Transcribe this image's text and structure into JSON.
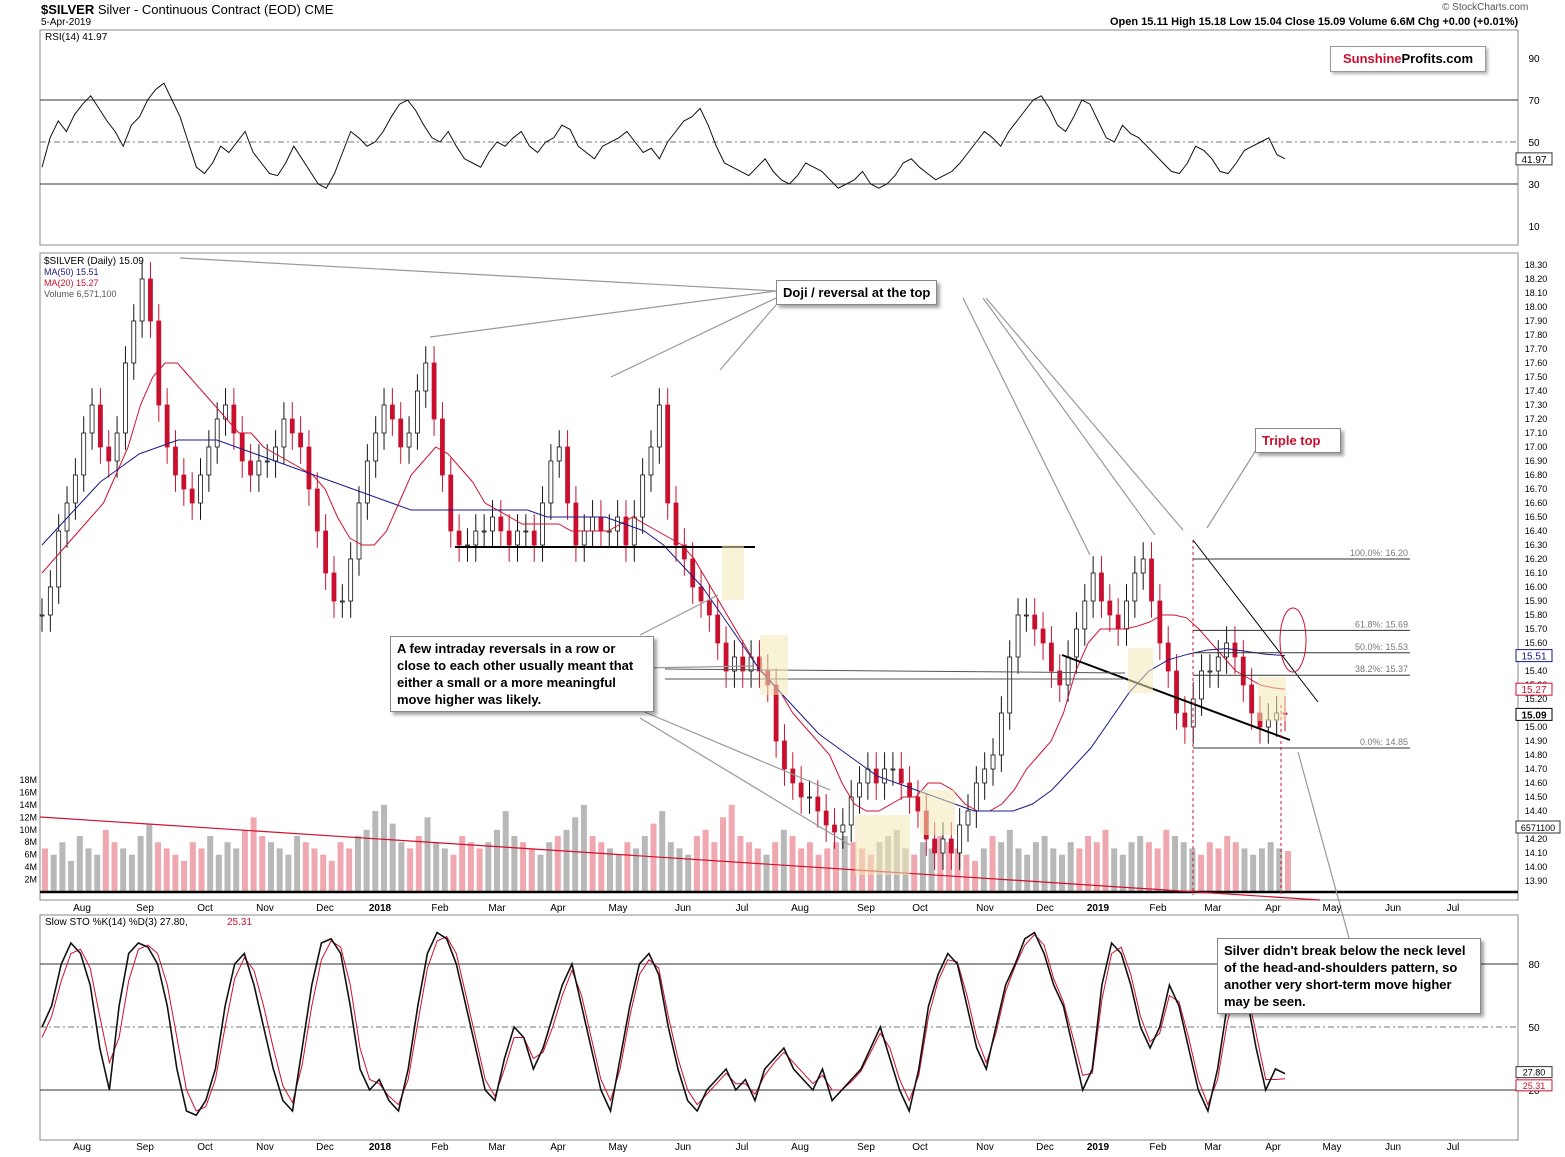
{
  "header": {
    "symbol": "$SILVER",
    "description": "Silver - Continuous Contract (EOD)",
    "exchange": "CME",
    "date": "5-Apr-2019",
    "ohlc": "Open 15.11  High 15.18  Low 15.04  Close 15.09  Volume 6.6M  Chg +0.00 (+0.01%)",
    "credit": "© StockCharts.com"
  },
  "logo": {
    "part1": "Sunshine",
    "part2": "Profits.com"
  },
  "callouts": {
    "doji": "Doji / reversal at the top",
    "triple_top": "Triple top",
    "reversals": "A few intraday reversals in a row or close to each other usually meant that either a small or a more meaningful move higher was likely.",
    "neck": "Silver didn't break below the neck level of the head-and-shoulders pattern, so another very short-term move higher may be seen."
  },
  "chart_data": [
    {
      "type": "line",
      "title": "RSI(14) 41.97",
      "ylim": [
        0,
        100
      ],
      "yticks": [
        10,
        30,
        50,
        70,
        90
      ],
      "reference_lines": [
        30,
        50,
        70
      ],
      "last_value": "41.97",
      "series": [
        {
          "name": "RSI(14)",
          "values": [
            38,
            52,
            60,
            55,
            63,
            68,
            72,
            66,
            60,
            55,
            48,
            58,
            62,
            70,
            75,
            78,
            70,
            62,
            50,
            38,
            35,
            40,
            48,
            45,
            50,
            55,
            45,
            40,
            35,
            34,
            40,
            48,
            42,
            36,
            30,
            28,
            35,
            45,
            55,
            52,
            48,
            50,
            55,
            62,
            68,
            70,
            65,
            58,
            52,
            50,
            55,
            48,
            42,
            40,
            38,
            45,
            50,
            48,
            52,
            55,
            48,
            45,
            50,
            52,
            58,
            56,
            48,
            45,
            42,
            48,
            50,
            52,
            55,
            50,
            45,
            47,
            42,
            50,
            55,
            60,
            62,
            66,
            58,
            48,
            40,
            38,
            36,
            34,
            38,
            42,
            36,
            32,
            30,
            34,
            40,
            38,
            36,
            32,
            28,
            30,
            32,
            36,
            30,
            28,
            30,
            34,
            40,
            42,
            38,
            35,
            32,
            34,
            36,
            40,
            45,
            50,
            55,
            52,
            48,
            55,
            60,
            65,
            70,
            72,
            66,
            58,
            55,
            62,
            70,
            68,
            60,
            52,
            50,
            58,
            54,
            52,
            48,
            44,
            40,
            36,
            35,
            40,
            48,
            46,
            42,
            36,
            35,
            40,
            46,
            48,
            50,
            52,
            44,
            42
          ]
        }
      ]
    },
    {
      "type": "line",
      "title": "$SILVER (Daily) 15.09",
      "subtitle": "Silver - Continuous Contract (EOD)",
      "ylim": [
        13.85,
        18.35
      ],
      "yticks": [
        13.9,
        14.0,
        14.1,
        14.2,
        14.3,
        14.4,
        14.5,
        14.6,
        14.7,
        14.8,
        14.9,
        15.0,
        15.1,
        15.2,
        15.3,
        15.4,
        15.5,
        15.6,
        15.7,
        15.8,
        15.9,
        16.0,
        16.1,
        16.2,
        16.3,
        16.4,
        16.5,
        16.6,
        16.7,
        16.8,
        16.9,
        17.0,
        17.1,
        17.2,
        17.3,
        17.4,
        17.5,
        17.6,
        17.7,
        17.8,
        17.9,
        18.0,
        18.1,
        18.2,
        18.3
      ],
      "x_labels": [
        "Aug",
        "Sep",
        "Oct",
        "Nov",
        "Dec",
        "2018",
        "Feb",
        "Mar",
        "Apr",
        "May",
        "Jun",
        "Jul",
        "Aug",
        "Sep",
        "Oct",
        "Nov",
        "Dec",
        "2019",
        "Feb",
        "Mar",
        "Apr",
        "May",
        "Jun",
        "Jul"
      ],
      "legend": [
        {
          "label": "$SILVER (Daily) 15.09",
          "color": "#000000"
        },
        {
          "label": "MA(50) 15.51",
          "color": "#1a1a8c"
        },
        {
          "label": "MA(20) 15.27",
          "color": "#d0102e"
        },
        {
          "label": "Volume 6,571,100",
          "color": "#777777"
        }
      ],
      "last_values": {
        "close": "15.09",
        "ma50": "15.51",
        "ma20": "15.27",
        "volume": "6571100"
      },
      "fibonacci": [
        {
          "label": "100.0%: 16.20",
          "value": 16.2
        },
        {
          "label": "61.8%: 15.69",
          "value": 15.69
        },
        {
          "label": "50.0%: 15.53",
          "value": 15.53
        },
        {
          "label": "38.2%: 15.37",
          "value": 15.37
        },
        {
          "label": "0.0%: 14.85",
          "value": 14.85
        }
      ],
      "volume_ticks": [
        "2M",
        "4M",
        "6M",
        "8M",
        "10M",
        "12M",
        "14M",
        "16M",
        "18M"
      ],
      "series": [
        {
          "name": "$SILVER (Daily)",
          "values": [
            15.8,
            16.0,
            16.4,
            16.6,
            16.8,
            17.1,
            17.3,
            17.0,
            16.9,
            17.1,
            17.6,
            17.9,
            18.2,
            17.9,
            17.3,
            17.0,
            16.8,
            16.7,
            16.6,
            16.8,
            17.0,
            17.2,
            17.3,
            17.1,
            16.9,
            16.8,
            16.9,
            16.9,
            17.0,
            17.2,
            17.1,
            17.0,
            16.7,
            16.4,
            16.1,
            15.9,
            15.9,
            16.2,
            16.6,
            16.9,
            17.1,
            17.3,
            17.2,
            17.0,
            17.1,
            17.4,
            17.6,
            17.2,
            16.8,
            16.4,
            16.3,
            16.3,
            16.4,
            16.4,
            16.5,
            16.4,
            16.3,
            16.4,
            16.4,
            16.3,
            16.6,
            16.9,
            17.0,
            16.6,
            16.3,
            16.4,
            16.5,
            16.4,
            16.4,
            16.5,
            16.3,
            16.5,
            16.8,
            17.0,
            17.3,
            16.6,
            16.3,
            16.2,
            16.0,
            15.9,
            15.8,
            15.6,
            15.4,
            15.5,
            15.4,
            15.5,
            15.4,
            15.3,
            14.9,
            14.7,
            14.6,
            14.5,
            14.5,
            14.4,
            14.3,
            14.25,
            14.3,
            14.5,
            14.6,
            14.7,
            14.6,
            14.7,
            14.7,
            14.6,
            14.5,
            14.4,
            14.2,
            14.1,
            14.2,
            14.1,
            14.3,
            14.4,
            14.6,
            14.7,
            14.8,
            15.1,
            15.5,
            15.8,
            15.8,
            15.7,
            15.6,
            15.4,
            15.3,
            15.5,
            15.7,
            15.9,
            16.1,
            15.9,
            15.8,
            15.7,
            15.9,
            16.1,
            16.2,
            15.9,
            15.6,
            15.4,
            15.1,
            15.0,
            15.2,
            15.4,
            15.4,
            15.5,
            15.6,
            15.5,
            15.3,
            15.1,
            15.0,
            15.05,
            15.1,
            15.09
          ]
        },
        {
          "name": "MA(20)",
          "values": [
            16.1,
            16.2,
            16.3,
            16.4,
            16.5,
            16.6,
            16.8,
            17.0,
            17.3,
            17.5,
            17.6,
            17.6,
            17.5,
            17.4,
            17.3,
            17.2,
            17.1,
            17.1,
            17.0,
            16.95,
            16.9,
            16.85,
            16.8,
            16.7,
            16.5,
            16.35,
            16.3,
            16.3,
            16.4,
            16.6,
            16.8,
            16.9,
            17.0,
            16.95,
            16.85,
            16.75,
            16.6,
            16.55,
            16.5,
            16.45,
            16.45,
            16.45,
            16.45,
            16.4,
            16.4,
            16.4,
            16.4,
            16.45,
            16.5,
            16.45,
            16.4,
            16.35,
            16.3,
            16.2,
            16.05,
            15.9,
            15.75,
            15.6,
            15.45,
            15.35,
            15.25,
            15.1,
            15.0,
            14.9,
            14.8,
            14.6,
            14.45,
            14.4,
            14.4,
            14.45,
            14.5,
            14.5,
            14.6,
            14.6,
            14.55,
            14.45,
            14.4,
            14.4,
            14.45,
            14.55,
            14.7,
            14.8,
            14.9,
            15.1,
            15.4,
            15.6,
            15.7,
            15.7,
            15.7,
            15.72,
            15.75,
            15.8,
            15.8,
            15.78,
            15.7,
            15.6,
            15.5,
            15.4,
            15.35,
            15.3,
            15.28,
            15.27
          ]
        },
        {
          "name": "MA(50)",
          "values": [
            16.3,
            16.45,
            16.6,
            16.75,
            16.85,
            16.95,
            17.0,
            17.05,
            17.05,
            17.05,
            17.0,
            16.95,
            16.9,
            16.85,
            16.8,
            16.75,
            16.7,
            16.65,
            16.6,
            16.55,
            16.55,
            16.55,
            16.55,
            16.55,
            16.55,
            16.55,
            16.5,
            16.5,
            16.5,
            16.5,
            16.45,
            16.4,
            16.3,
            16.15,
            16.0,
            15.8,
            15.6,
            15.4,
            15.25,
            15.1,
            14.95,
            14.85,
            14.75,
            14.65,
            14.6,
            14.55,
            14.5,
            14.45,
            14.4,
            14.4,
            14.4,
            14.45,
            14.55,
            14.7,
            14.85,
            15.05,
            15.25,
            15.4,
            15.48,
            15.52,
            15.55,
            15.56,
            15.54,
            15.52,
            15.51
          ]
        },
        {
          "name": "Volume",
          "values": [
            7,
            6,
            8,
            5,
            9,
            7,
            6,
            10,
            8,
            7,
            6,
            9,
            11,
            8,
            7,
            6,
            5,
            8,
            7,
            9,
            6,
            8,
            7,
            10,
            12,
            9,
            8,
            7,
            6,
            9,
            8,
            7,
            6,
            5,
            8,
            7,
            9,
            10,
            13,
            14,
            11,
            8,
            7,
            9,
            12,
            8,
            7,
            6,
            9,
            8,
            7,
            8,
            10,
            13,
            9,
            8,
            7,
            6,
            8,
            9,
            10,
            12,
            14,
            9,
            8,
            7,
            6,
            8,
            7,
            9,
            11,
            13,
            8,
            7,
            6,
            9,
            10,
            8,
            12,
            14,
            9,
            8,
            7,
            6,
            8,
            10,
            9,
            7,
            8,
            6,
            7,
            8,
            9,
            8,
            7,
            6,
            8,
            9,
            10,
            7,
            6,
            8,
            7,
            9,
            8,
            7,
            6,
            5,
            7,
            9,
            8,
            10,
            7,
            6,
            8,
            9,
            7,
            6,
            8,
            7,
            9,
            8,
            10,
            7,
            6,
            8,
            9,
            8,
            7,
            10,
            9,
            8,
            7,
            6,
            8,
            7,
            9,
            8,
            7,
            6,
            7,
            8,
            7,
            6.6
          ]
        }
      ]
    },
    {
      "type": "line",
      "title": "Slow STO %K(14) %D(3) 27.80, 25.31",
      "ylim": [
        0,
        100
      ],
      "yticks": [
        20,
        50,
        80
      ],
      "reference_lines": [
        20,
        50,
        80
      ],
      "last_values": {
        "k": "27.80",
        "d": "25.31"
      },
      "series": [
        {
          "name": "%K(14)",
          "values": [
            50,
            60,
            80,
            90,
            85,
            70,
            40,
            20,
            60,
            85,
            90,
            88,
            80,
            60,
            30,
            10,
            8,
            15,
            30,
            60,
            80,
            85,
            70,
            50,
            30,
            15,
            10,
            40,
            70,
            90,
            92,
            85,
            60,
            30,
            20,
            25,
            15,
            10,
            30,
            60,
            85,
            95,
            92,
            80,
            60,
            40,
            20,
            15,
            35,
            50,
            45,
            30,
            40,
            55,
            70,
            80,
            60,
            40,
            20,
            10,
            35,
            60,
            80,
            85,
            75,
            50,
            30,
            15,
            10,
            20,
            25,
            30,
            20,
            25,
            15,
            30,
            35,
            40,
            30,
            25,
            20,
            30,
            15,
            20,
            25,
            30,
            40,
            50,
            35,
            20,
            10,
            30,
            60,
            75,
            85,
            80,
            60,
            40,
            30,
            50,
            70,
            80,
            92,
            95,
            85,
            70,
            60,
            40,
            20,
            30,
            70,
            90,
            85,
            70,
            50,
            40,
            50,
            70,
            60,
            40,
            20,
            10,
            30,
            60,
            75,
            65,
            40,
            20,
            30,
            27.8
          ]
        },
        {
          "name": "%D(3)",
          "values": [
            45,
            55,
            72,
            85,
            87,
            78,
            55,
            33,
            45,
            72,
            87,
            89,
            85,
            70,
            45,
            20,
            10,
            12,
            25,
            50,
            73,
            83,
            77,
            60,
            40,
            22,
            14,
            32,
            60,
            82,
            91,
            88,
            70,
            40,
            25,
            23,
            17,
            13,
            25,
            52,
            78,
            91,
            93,
            85,
            65,
            45,
            25,
            17,
            30,
            45,
            45,
            35,
            38,
            50,
            65,
            77,
            65,
            45,
            25,
            15,
            30,
            55,
            75,
            82,
            78,
            55,
            35,
            20,
            13,
            18,
            23,
            28,
            23,
            23,
            18,
            27,
            33,
            38,
            33,
            28,
            23,
            27,
            20,
            20,
            24,
            29,
            38,
            47,
            40,
            25,
            15,
            27,
            55,
            72,
            82,
            81,
            65,
            45,
            33,
            47,
            67,
            79,
            89,
            94,
            89,
            73,
            62,
            45,
            27,
            28,
            63,
            85,
            88,
            75,
            55,
            43,
            47,
            65,
            62,
            45,
            25,
            13,
            25,
            52,
            70,
            68,
            47,
            25,
            25,
            25.31
          ]
        }
      ]
    }
  ]
}
